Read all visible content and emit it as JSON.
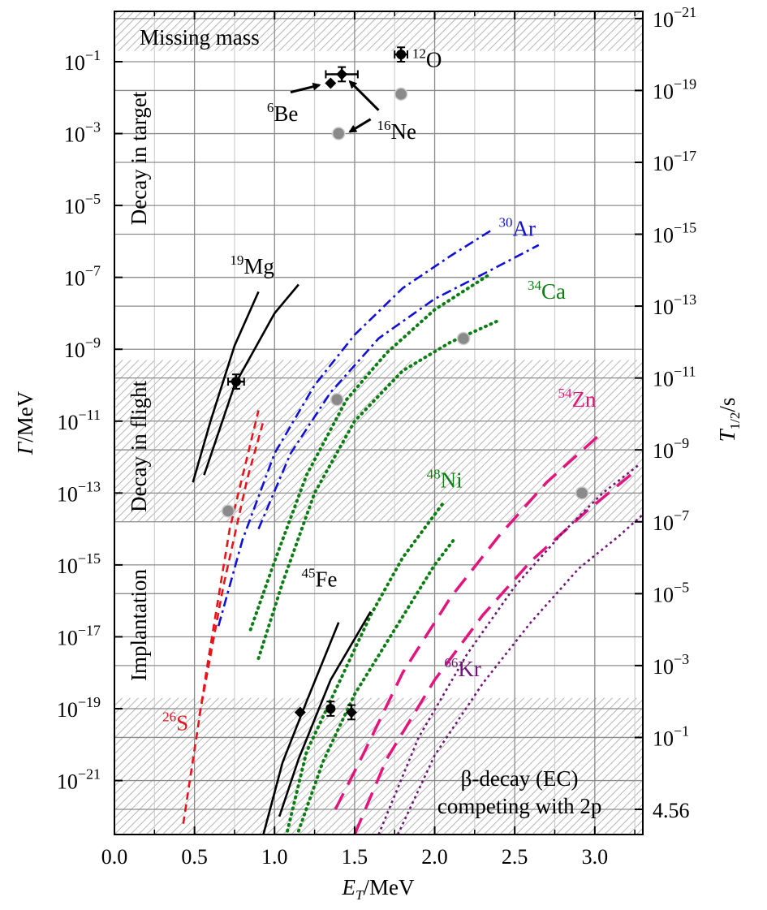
{
  "chart_data": {
    "type": "line",
    "xlabel": "E_T/MeV",
    "ylabel": "Γ/MeV",
    "y2label": "T_1/2/s",
    "xlim": [
      0.0,
      3.3
    ],
    "ylim_log10": [
      -22.5,
      0.4
    ],
    "grid": true,
    "y_scale": "log",
    "x_ticks": [
      "0.0",
      "0.5",
      "1.0",
      "1.5",
      "2.0",
      "2.5",
      "3.0"
    ],
    "y_ticks_left": [
      {
        "base": "10",
        "exp": "−1"
      },
      {
        "base": "10",
        "exp": "−3"
      },
      {
        "base": "10",
        "exp": "−5"
      },
      {
        "base": "10",
        "exp": "−7"
      },
      {
        "base": "10",
        "exp": "−9"
      },
      {
        "base": "10",
        "exp": "−11"
      },
      {
        "base": "10",
        "exp": "−13"
      },
      {
        "base": "10",
        "exp": "−15"
      },
      {
        "base": "10",
        "exp": "−17"
      },
      {
        "base": "10",
        "exp": "−19"
      },
      {
        "base": "10",
        "exp": "−21"
      }
    ],
    "y_ticks_right": [
      {
        "base": "10",
        "exp": "−21"
      },
      {
        "base": "10",
        "exp": "−19"
      },
      {
        "base": "10",
        "exp": "−17"
      },
      {
        "base": "10",
        "exp": "−15"
      },
      {
        "base": "10",
        "exp": "−13"
      },
      {
        "base": "10",
        "exp": "−11"
      },
      {
        "base": "10",
        "exp": "−9"
      },
      {
        "base": "10",
        "exp": "−7"
      },
      {
        "base": "10",
        "exp": "−5"
      },
      {
        "base": "10",
        "exp": "−3"
      },
      {
        "base": "10",
        "exp": "−1"
      },
      {
        "base": "4.56",
        "exp": ""
      }
    ],
    "regions": [
      {
        "label": "Missing mass",
        "y_range_log10": [
          -0.7,
          0.4
        ]
      },
      {
        "label": "Decay in target",
        "y_range_log10": [
          -9.3,
          0.4
        ],
        "hatched": false
      },
      {
        "label": "Decay in flight",
        "y_range_log10": [
          -13.8,
          -9.3
        ]
      },
      {
        "label": "Implantation",
        "y_range_log10": [
          -18.7,
          -13.8
        ],
        "hatched": false
      },
      {
        "label": "β-decay (EC)\ncompeting with 2p",
        "y_range_log10": [
          -22.5,
          -18.7
        ]
      }
    ],
    "series": [
      {
        "name": "19Mg",
        "color": "#000000",
        "style": "solid",
        "curves": [
          {
            "x": [
              0.49,
              0.6,
              0.75,
              0.9
            ],
            "y": [
              -12.7,
              -11.0,
              -8.9,
              -7.4
            ]
          },
          {
            "x": [
              0.56,
              0.75,
              1.0,
              1.15
            ],
            "y": [
              -12.5,
              -10.0,
              -8.0,
              -7.2
            ]
          }
        ]
      },
      {
        "name": "26S",
        "color": "#e8141b",
        "style": "dashed",
        "curves": [
          {
            "x": [
              0.43,
              0.58,
              0.72,
              0.9
            ],
            "y": [
              -22.2,
              -17.8,
              -14.0,
              -10.7
            ]
          },
          {
            "x": [
              0.53,
              0.68,
              0.83,
              0.93
            ],
            "y": [
              -19.2,
              -15.6,
              -12.6,
              -11.0
            ]
          }
        ]
      },
      {
        "name": "30Ar",
        "color": "#1010d8",
        "style": "dashdot",
        "curves": [
          {
            "x": [
              0.65,
              0.8,
              1.0,
              1.25,
              1.5,
              1.8,
              2.1,
              2.35
            ],
            "y": [
              -16.7,
              -14.3,
              -11.9,
              -10.0,
              -8.6,
              -7.3,
              -6.4,
              -5.7
            ]
          },
          {
            "x": [
              0.9,
              1.1,
              1.35,
              1.65,
              2.0,
              2.35,
              2.65
            ],
            "y": [
              -14.0,
              -11.9,
              -10.2,
              -8.7,
              -7.6,
              -6.8,
              -6.1
            ]
          }
        ]
      },
      {
        "name": "34Ca",
        "color": "#0c7d12",
        "style": "dotted",
        "curves": [
          {
            "x": [
              0.85,
              1.0,
              1.2,
              1.45,
              1.7,
              2.0,
              2.35
            ],
            "y": [
              -16.8,
              -14.9,
              -12.5,
              -10.4,
              -9.1,
              -7.9,
              -6.9
            ]
          },
          {
            "x": [
              0.9,
              1.05,
              1.25,
              1.5,
              1.8,
              2.1,
              2.4
            ],
            "y": [
              -17.6,
              -15.5,
              -13.0,
              -11.0,
              -9.6,
              -8.8,
              -8.2
            ]
          }
        ]
      },
      {
        "name": "48Ni",
        "color": "#0c7d12",
        "style": "dotted",
        "curves": [
          {
            "x": [
              1.08,
              1.2,
              1.4,
              1.6,
              1.8,
              2.05
            ],
            "y": [
              -22.4,
              -20.2,
              -18.3,
              -16.4,
              -14.8,
              -13.3
            ]
          },
          {
            "x": [
              1.15,
              1.3,
              1.5,
              1.75,
              2.0,
              2.12
            ],
            "y": [
              -22.4,
              -20.5,
              -18.6,
              -16.8,
              -15.0,
              -14.3
            ]
          }
        ]
      },
      {
        "name": "45Fe",
        "color": "#000000",
        "style": "solid",
        "curves": [
          {
            "x": [
              0.93,
              1.05,
              1.2,
              1.4
            ],
            "y": [
              -22.5,
              -20.5,
              -18.8,
              -16.6
            ]
          },
          {
            "x": [
              1.03,
              1.15,
              1.35,
              1.6
            ],
            "y": [
              -22.0,
              -20.4,
              -18.2,
              -16.3
            ]
          }
        ]
      },
      {
        "name": "54Zn",
        "color": "#e3157d",
        "style": "longdash",
        "curves": [
          {
            "x": [
              1.38,
              1.55,
              1.8,
              2.1,
              2.4,
              2.7,
              3.05
            ],
            "y": [
              -21.8,
              -20.3,
              -18.0,
              -15.9,
              -14.2,
              -12.7,
              -11.3
            ]
          },
          {
            "x": [
              1.5,
              1.7,
              2.0,
              2.3,
              2.6,
              2.95,
              3.25
            ],
            "y": [
              -22.5,
              -20.4,
              -18.2,
              -16.4,
              -14.9,
              -13.5,
              -12.4
            ]
          }
        ]
      },
      {
        "name": "66Kr",
        "color": "#701577",
        "style": "dotted-fine",
        "curves": [
          {
            "x": [
              1.65,
              1.9,
              2.2,
              2.5,
              2.8,
              3.05,
              3.28
            ],
            "y": [
              -22.5,
              -19.8,
              -17.5,
              -15.6,
              -14.1,
              -13.0,
              -12.2
            ]
          },
          {
            "x": [
              1.77,
              2.0,
              2.3,
              2.6,
              2.9,
              3.15,
              3.3
            ],
            "y": [
              -22.5,
              -20.3,
              -18.3,
              -16.6,
              -15.1,
              -14.2,
              -13.6
            ]
          }
        ]
      }
    ],
    "points_experimental": [
      {
        "x": 1.79,
        "y": -0.8,
        "xerr": 0.04,
        "yerr": 0.2,
        "marker": "circle"
      },
      {
        "x": 1.42,
        "y": -1.35,
        "xerr": 0.1,
        "yerr": 0.2,
        "marker": "diamond"
      },
      {
        "x": 1.35,
        "y": -1.6,
        "marker": "diamond"
      },
      {
        "x": 0.76,
        "y": -9.9,
        "xerr": 0.05,
        "yerr": 0.2,
        "marker": "circle"
      },
      {
        "x": 1.16,
        "y": -19.1,
        "marker": "diamond"
      },
      {
        "x": 1.35,
        "y": -19.0,
        "yerr": 0.2,
        "marker": "circle"
      },
      {
        "x": 1.48,
        "y": -19.1,
        "yerr": 0.2,
        "marker": "diamond"
      }
    ],
    "points_gray": [
      {
        "x": 1.79,
        "y": -1.9
      },
      {
        "x": 1.4,
        "y": -3.0
      },
      {
        "x": 2.18,
        "y": -8.7
      },
      {
        "x": 1.39,
        "y": -10.4
      },
      {
        "x": 0.71,
        "y": -13.5
      },
      {
        "x": 2.92,
        "y": -13.0
      }
    ],
    "annotations": [
      {
        "iso": "12O",
        "mass": "12",
        "sym": "O",
        "color": "#000000"
      },
      {
        "iso": "6Be",
        "mass": "6",
        "sym": "Be",
        "color": "#000000"
      },
      {
        "iso": "16Ne",
        "mass": "16",
        "sym": "Ne",
        "color": "#000000"
      },
      {
        "iso": "19Mg",
        "mass": "19",
        "sym": "Mg",
        "color": "#000000"
      },
      {
        "iso": "30Ar",
        "mass": "30",
        "sym": "Ar",
        "color": "#1010d8"
      },
      {
        "iso": "34Ca",
        "mass": "34",
        "sym": "Ca",
        "color": "#0c7d12"
      },
      {
        "iso": "54Zn",
        "mass": "54",
        "sym": "Zn",
        "color": "#e3157d"
      },
      {
        "iso": "48Ni",
        "mass": "48",
        "sym": "Ni",
        "color": "#0c7d12"
      },
      {
        "iso": "45Fe",
        "mass": "45",
        "sym": "Fe",
        "color": "#000000"
      },
      {
        "iso": "66Kr",
        "mass": "66",
        "sym": "Kr",
        "color": "#701577"
      },
      {
        "iso": "26S",
        "mass": "26",
        "sym": "S",
        "color": "#e8141b"
      }
    ]
  }
}
